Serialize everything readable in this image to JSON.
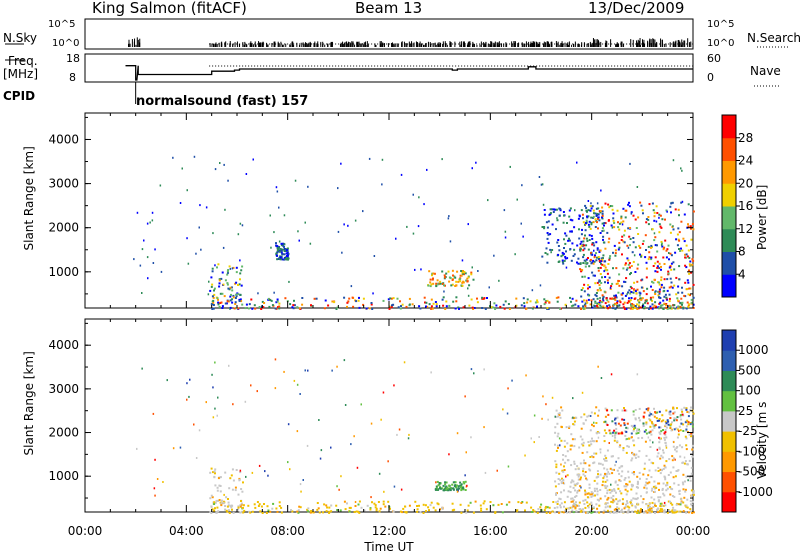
{
  "header": {
    "station": "King Salmon (fitACF)",
    "beam": "Beam 13",
    "date": "13/Dec/2009"
  },
  "side_labels": {
    "nsky": "N.Sky",
    "nsearch": "N.Search",
    "freq": "Freq.",
    "freq_unit": "[MHz]",
    "nave": "Nave",
    "cpid": "CPID"
  },
  "cpid_annotation": "normalsound (fast) 157",
  "colors": {
    "power": [
      "#0000ff",
      "#1f4fa8",
      "#2e8b57",
      "#62b86a",
      "#f0d000",
      "#ff9900",
      "#ff5000",
      "#ff0000"
    ],
    "velocity": [
      "#1f3fb0",
      "#2e5fb0",
      "#2e8b57",
      "#62c040",
      "#c8c8c8",
      "#f0c000",
      "#ff9900",
      "#ff5000",
      "#ff0000"
    ]
  },
  "chart_data": [
    {
      "type": "line",
      "panel": "N.Sky / N.Search",
      "y_tick_labels": [
        "10^5",
        "10^0"
      ],
      "y_tick_labels_right": [
        "10^5",
        "10^0"
      ]
    },
    {
      "type": "line",
      "panel": "Freq / Nave",
      "y_left_ticks": [
        8,
        18
      ],
      "y_right_ticks": [
        0,
        60
      ],
      "series": [
        {
          "name": "Freq.",
          "x": [
            0,
            1.6,
            1.6,
            2.0,
            2.0,
            2.05,
            2.1,
            2.1,
            5.0,
            5.0,
            5.9,
            5.9,
            6.1,
            6.1,
            14.5,
            14.5,
            14.7,
            14.7,
            17.5,
            17.5,
            17.8,
            17.8,
            24.0
          ],
          "y": [
            null,
            null,
            14.5,
            14.5,
            8,
            8,
            14.5,
            10.5,
            10.5,
            12,
            12,
            12.5,
            12.5,
            13,
            13,
            12.5,
            12.5,
            13,
            13,
            14,
            14,
            13,
            13
          ]
        }
      ]
    },
    {
      "type": "heatmap",
      "title": "",
      "xlabel": "Time UT",
      "ylabel": "Slant Range [km]",
      "x_tick_labels": [
        "00:00",
        "04:00",
        "08:00",
        "12:00",
        "16:00",
        "20:00",
        "00:00"
      ],
      "y_tick_labels": [
        "1000",
        "2000",
        "3000",
        "4000"
      ],
      "xlim": [
        0,
        24
      ],
      "ylim": [
        180,
        4600
      ],
      "colorbar": {
        "label": "Power [dB]",
        "ticks": [
          4,
          8,
          12,
          16,
          20,
          24,
          28
        ]
      },
      "scatter_regions": [
        {
          "x": [
            4.9,
            6.2
          ],
          "y": [
            180,
            1200
          ],
          "level": "mixed"
        },
        {
          "x": [
            4.9,
            24.0
          ],
          "y": [
            180,
            450
          ],
          "level": "high"
        },
        {
          "x": [
            13.5,
            15.3
          ],
          "y": [
            700,
            1050
          ],
          "level": "mid"
        },
        {
          "x": [
            18.0,
            20.5
          ],
          "y": [
            1200,
            2500
          ],
          "level": "low"
        },
        {
          "x": [
            19.5,
            24.0
          ],
          "y": [
            180,
            2600
          ],
          "level": "high"
        },
        {
          "x": [
            7.5,
            8.0
          ],
          "y": [
            1300,
            1700
          ],
          "level": "low"
        }
      ]
    },
    {
      "type": "heatmap",
      "title": "",
      "xlabel": "Time UT",
      "ylabel": "Slant Range [km]",
      "x_tick_labels": [
        "00:00",
        "04:00",
        "08:00",
        "12:00",
        "16:00",
        "20:00",
        "00:00"
      ],
      "y_tick_labels": [
        "1000",
        "2000",
        "3000",
        "4000"
      ],
      "xlim": [
        0,
        24
      ],
      "ylim": [
        180,
        4600
      ],
      "colorbar": {
        "label": "Velocity [m s^-1]",
        "ticks": [
          "1000",
          "500",
          "100",
          "25",
          "-25",
          "-100",
          "-500",
          "-1000"
        ]
      },
      "scatter_regions": [
        {
          "x": [
            4.9,
            6.2
          ],
          "y": [
            180,
            1200
          ],
          "level": "ground"
        },
        {
          "x": [
            4.9,
            24.0
          ],
          "y": [
            180,
            450
          ],
          "level": "slow"
        },
        {
          "x": [
            13.8,
            15.0
          ],
          "y": [
            700,
            900
          ],
          "level": "positive"
        },
        {
          "x": [
            18.5,
            24.0
          ],
          "y": [
            180,
            2600
          ],
          "level": "ground"
        },
        {
          "x": [
            20.5,
            24.0
          ],
          "y": [
            2000,
            2600
          ],
          "level": "mixed"
        }
      ]
    }
  ]
}
